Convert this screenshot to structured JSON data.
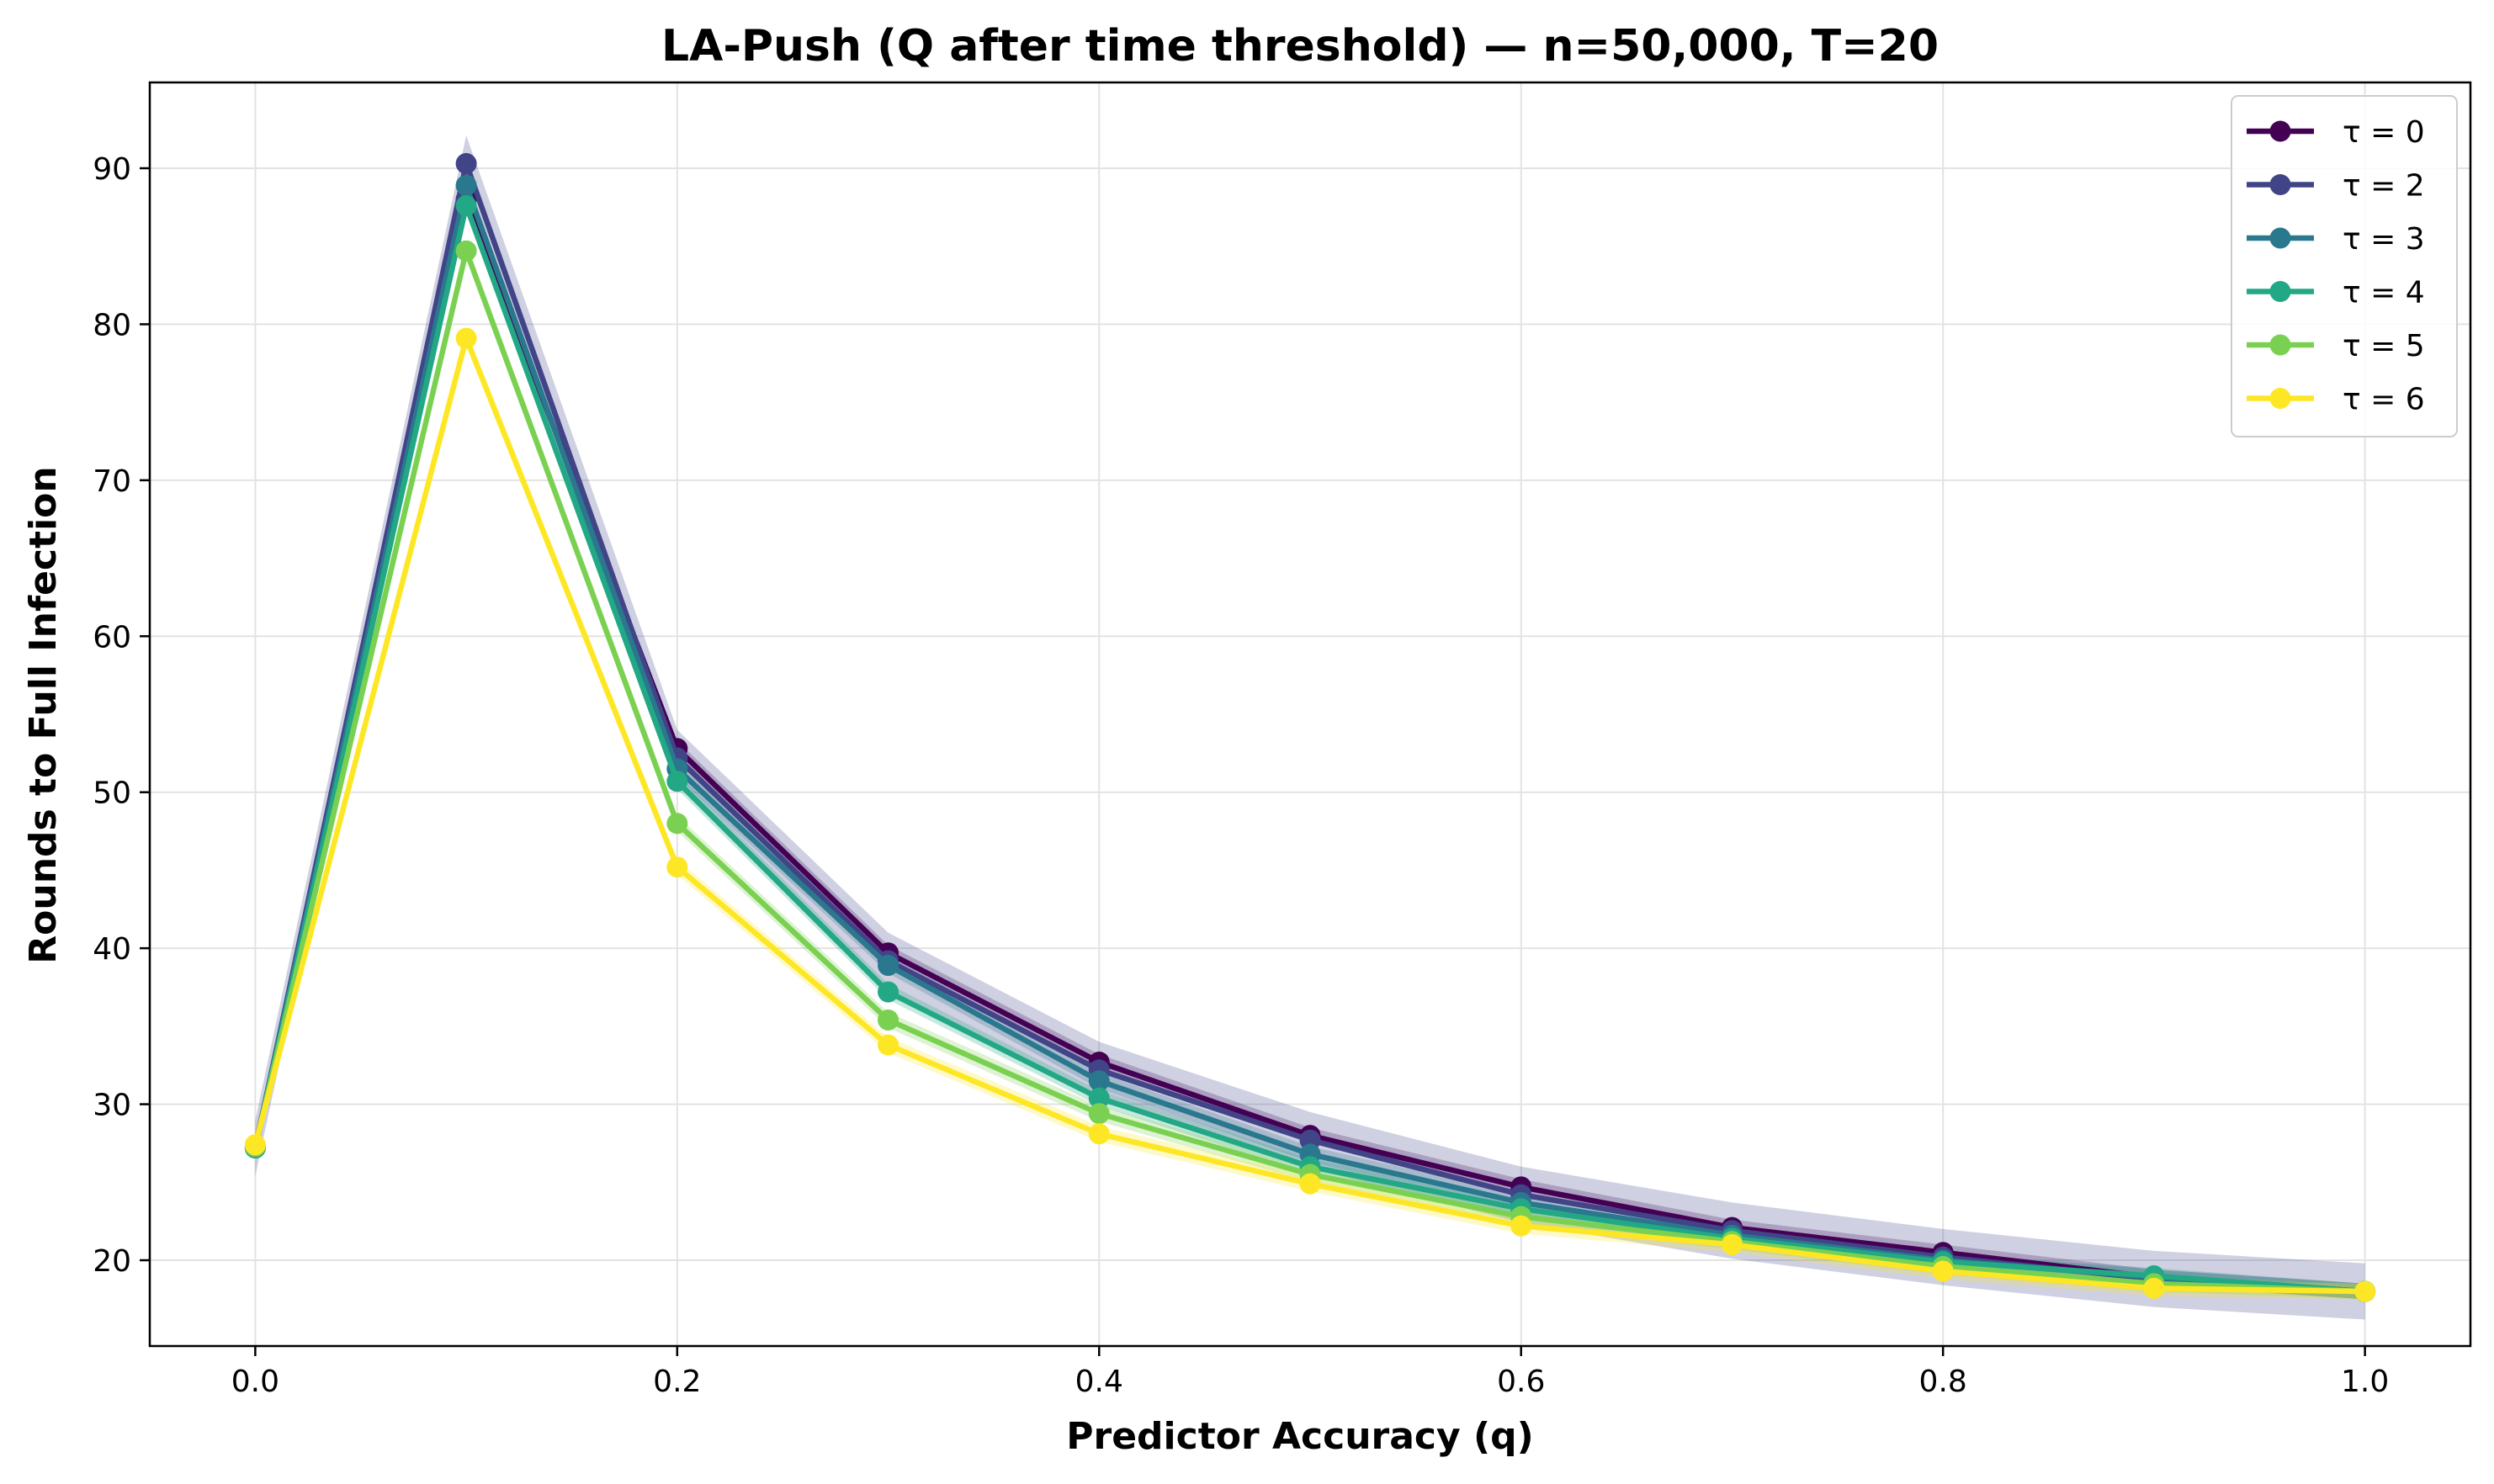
{
  "chart_data": {
    "type": "line",
    "title": "LA-Push (Q after time threshold) — n=50,000, T=20",
    "xlabel": "Predictor Accuracy (q)",
    "ylabel": "Rounds to Full Infection",
    "xlim": [
      -0.05,
      1.05
    ],
    "ylim": [
      14.5,
      95.5
    ],
    "x": [
      0.0,
      0.1,
      0.2,
      0.3,
      0.4,
      0.5,
      0.6,
      0.7,
      0.8,
      0.9,
      1.0
    ],
    "xticks": [
      "0.0",
      "0.2",
      "0.4",
      "0.6",
      "0.8",
      "1.0"
    ],
    "xtick_values": [
      0.0,
      0.2,
      0.4,
      0.6,
      0.8,
      1.0
    ],
    "yticks": [
      "20",
      "30",
      "40",
      "50",
      "60",
      "70",
      "80",
      "90"
    ],
    "ytick_values": [
      20,
      30,
      40,
      50,
      60,
      70,
      80,
      90
    ],
    "grid": true,
    "legend_position": "top-right",
    "series": [
      {
        "name": "τ = 0",
        "color": "#440154",
        "band": 0.5,
        "values": [
          27.3,
          88.0,
          52.8,
          39.7,
          32.7,
          28.0,
          24.7,
          22.1,
          20.5,
          18.9,
          18.0
        ]
      },
      {
        "name": "τ = 2",
        "color": "#414487",
        "band": 1.8,
        "values": [
          27.2,
          90.3,
          52.2,
          39.2,
          32.2,
          27.7,
          24.2,
          21.9,
          20.2,
          18.8,
          18.0
        ]
      },
      {
        "name": "τ = 3",
        "color": "#2a788e",
        "band": 0.5,
        "values": [
          27.2,
          88.9,
          51.5,
          38.9,
          31.5,
          26.8,
          23.7,
          21.6,
          20.0,
          18.9,
          18.0
        ]
      },
      {
        "name": "τ = 4",
        "color": "#22a884",
        "band": 0.5,
        "values": [
          27.2,
          87.6,
          50.7,
          37.2,
          30.4,
          26.0,
          23.3,
          21.4,
          19.9,
          19.0,
          18.0
        ]
      },
      {
        "name": "τ = 5",
        "color": "#7ad151",
        "band": 0.5,
        "values": [
          27.3,
          84.7,
          48.0,
          35.4,
          29.4,
          25.5,
          22.8,
          21.2,
          19.6,
          18.5,
          18.0
        ]
      },
      {
        "name": "τ = 6",
        "color": "#fde725",
        "band": 0.5,
        "values": [
          27.4,
          79.1,
          45.2,
          33.8,
          28.1,
          24.9,
          22.2,
          21.0,
          19.3,
          18.2,
          18.0
        ]
      }
    ]
  }
}
